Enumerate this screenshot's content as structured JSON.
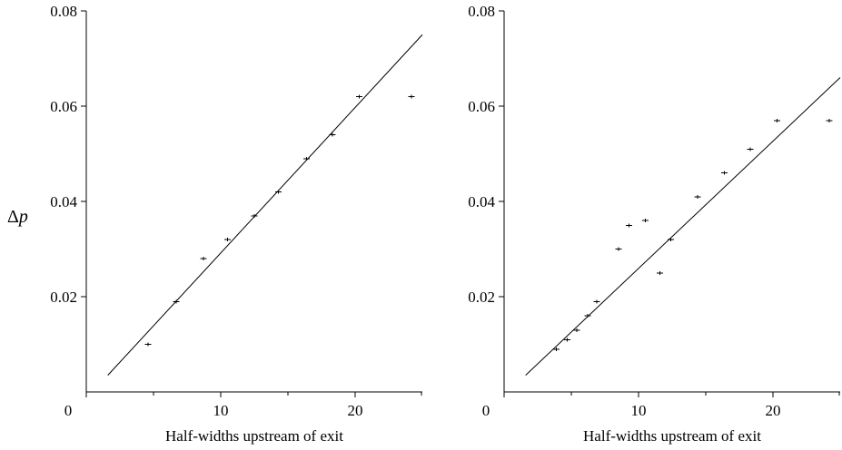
{
  "figure": {
    "ylabel_symbol": "Δ",
    "ylabel_var": "p"
  },
  "chart_data": [
    {
      "type": "scatter",
      "title": "",
      "xlabel": "Half-widths upstream of exit",
      "ylabel": "Δp",
      "xlim": [
        0,
        25
      ],
      "ylim": [
        0,
        0.08
      ],
      "x_ticks": [
        0,
        10,
        20
      ],
      "x_tick_labels": [
        "0",
        "10",
        "20"
      ],
      "x_minor_ticks": [
        5,
        15,
        25
      ],
      "y_ticks": [
        0.02,
        0.04,
        0.06,
        0.08
      ],
      "y_tick_labels": [
        "0.02",
        "0.04",
        "0.06",
        "0.08"
      ],
      "grid": false,
      "series": [
        {
          "kind": "points",
          "marker": "+",
          "x": [
            4.6,
            6.7,
            8.7,
            10.5,
            12.5,
            14.3,
            16.4,
            18.3,
            20.3,
            24.2
          ],
          "y": [
            0.01,
            0.019,
            0.028,
            0.032,
            0.037,
            0.042,
            0.049,
            0.054,
            0.062,
            0.062
          ]
        },
        {
          "kind": "fit-line",
          "x": [
            1.6,
            25
          ],
          "y": [
            0.0035,
            0.075
          ]
        }
      ]
    },
    {
      "type": "scatter",
      "title": "",
      "xlabel": "Half-widths upstream of exit",
      "ylabel": "",
      "xlim": [
        0,
        25
      ],
      "ylim": [
        0,
        0.08
      ],
      "x_ticks": [
        0,
        10,
        20
      ],
      "x_tick_labels": [
        "0",
        "10",
        "20"
      ],
      "x_minor_ticks": [
        5,
        15,
        25
      ],
      "y_ticks": [
        0.02,
        0.04,
        0.06,
        0.08
      ],
      "y_tick_labels": [
        "0.02",
        "0.04",
        "0.06",
        "0.08"
      ],
      "grid": false,
      "series": [
        {
          "kind": "points",
          "marker": "+",
          "x": [
            3.9,
            4.7,
            5.4,
            6.2,
            6.9,
            8.5,
            9.3,
            10.5,
            11.6,
            12.4,
            14.4,
            16.4,
            18.3,
            20.3,
            24.2
          ],
          "y": [
            0.009,
            0.011,
            0.013,
            0.016,
            0.019,
            0.03,
            0.035,
            0.036,
            0.025,
            0.032,
            0.041,
            0.046,
            0.051,
            0.057,
            0.057
          ]
        },
        {
          "kind": "fit-line",
          "x": [
            1.6,
            25
          ],
          "y": [
            0.0035,
            0.066
          ]
        }
      ]
    }
  ]
}
